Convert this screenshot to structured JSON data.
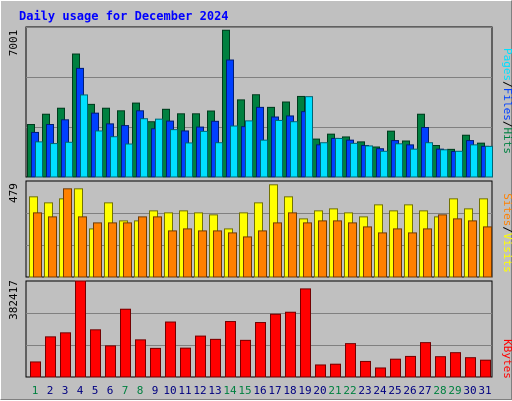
{
  "chart_data": [
    {
      "type": "bar",
      "title": "Daily usage for December 2024",
      "categories": [
        "1",
        "2",
        "3",
        "4",
        "5",
        "6",
        "7",
        "8",
        "9",
        "10",
        "11",
        "12",
        "13",
        "14",
        "15",
        "16",
        "17",
        "18",
        "19",
        "20",
        "21",
        "22",
        "23",
        "24",
        "25",
        "26",
        "27",
        "28",
        "29",
        "30",
        "31"
      ],
      "weekend_days": [
        "1",
        "7",
        "8",
        "14",
        "15",
        "21",
        "22",
        "28",
        "29"
      ],
      "ymax_label": "7001",
      "ylim": [
        0,
        7001
      ],
      "side_labels": [
        "Pages",
        "Files",
        "Hits"
      ],
      "series": [
        {
          "name": "Hits",
          "color": "#008040",
          "values": [
            2450,
            2930,
            3210,
            5740,
            3390,
            3210,
            3090,
            3450,
            2580,
            3160,
            2950,
            2950,
            3080,
            6850,
            3600,
            3840,
            3250,
            3500,
            3760,
            1770,
            2000,
            1870,
            1640,
            1400,
            2140,
            1680,
            2930,
            1470,
            1290,
            1950,
            1580
          ]
        },
        {
          "name": "Files",
          "color": "#0040ff",
          "values": [
            2080,
            2450,
            2670,
            5070,
            2980,
            2480,
            2400,
            3090,
            2250,
            2610,
            2150,
            2330,
            2600,
            5460,
            2350,
            3250,
            2800,
            2850,
            3050,
            1500,
            1800,
            1720,
            1470,
            1320,
            1700,
            1500,
            2310,
            1300,
            1190,
            1700,
            1430
          ]
        },
        {
          "name": "Pages",
          "color": "#00e0ff",
          "values": [
            1640,
            1560,
            1620,
            3830,
            2150,
            1880,
            1540,
            2720,
            2700,
            2210,
            1590,
            2130,
            1600,
            2380,
            2620,
            1720,
            2640,
            2580,
            3750,
            1600,
            1800,
            1570,
            1450,
            1200,
            1550,
            1300,
            1600,
            1270,
            1200,
            1500,
            1430
          ]
        }
      ]
    },
    {
      "type": "bar",
      "ymax_label": "479",
      "ylim": [
        0,
        479
      ],
      "side_labels": [
        "Sites",
        "Visits"
      ],
      "series": [
        {
          "name": "Visits",
          "color": "#ffff00",
          "values": [
            400,
            370,
            390,
            440,
            240,
            370,
            280,
            280,
            330,
            320,
            330,
            320,
            310,
            240,
            320,
            370,
            460,
            400,
            290,
            330,
            340,
            320,
            300,
            360,
            330,
            360,
            330,
            300,
            390,
            340,
            390
          ]
        },
        {
          "name": "Sites",
          "color": "#ff8000",
          "values": [
            320,
            300,
            440,
            300,
            270,
            270,
            270,
            300,
            300,
            230,
            240,
            230,
            230,
            220,
            200,
            230,
            270,
            320,
            270,
            280,
            280,
            270,
            250,
            220,
            240,
            220,
            240,
            310,
            290,
            280,
            250
          ]
        }
      ]
    },
    {
      "type": "bar",
      "ymax_label": "382417",
      "ylim": [
        0,
        382417
      ],
      "side_labels": [
        "KBytes"
      ],
      "series": [
        {
          "name": "KBytes",
          "color": "#ff0000",
          "values": [
            60000,
            160000,
            176000,
            382417,
            188000,
            124000,
            270000,
            148000,
            114000,
            219000,
            115000,
            163000,
            150000,
            221000,
            146000,
            217000,
            250000,
            258000,
            351000,
            48000,
            51000,
            133000,
            62000,
            36000,
            71000,
            82000,
            137000,
            81000,
            97000,
            77000,
            67000
          ]
        }
      ]
    }
  ]
}
